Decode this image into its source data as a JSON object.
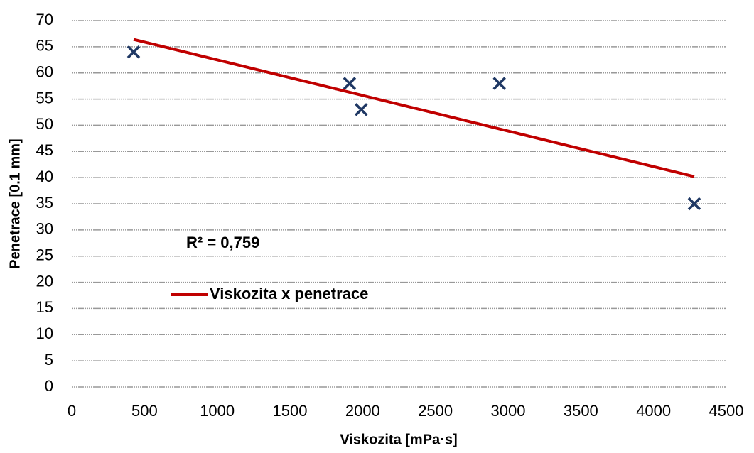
{
  "chart_data": {
    "type": "scatter",
    "x_label": "Viskozita [mPa·s]",
    "y_label": "Penetrace [0.1 mm]",
    "series": [
      {
        "color": "#1f3864",
        "x": [
          425,
          1910,
          1990,
          2940,
          4280
        ],
        "values": [
          64,
          58,
          53,
          58,
          35
        ]
      }
    ],
    "trendline": {
      "name": "Viskozita x penetrace",
      "color": "#c00000",
      "x": [
        425,
        4280
      ],
      "values": [
        66.4,
        40.2
      ]
    },
    "annotation": "R² = 0,759",
    "xlim": [
      0,
      4500
    ],
    "xticks": [
      0,
      500,
      1000,
      1500,
      2000,
      2500,
      3000,
      3500,
      4000,
      4500
    ],
    "ylim": [
      0,
      70
    ],
    "yticks": [
      0,
      5,
      10,
      15,
      20,
      25,
      30,
      35,
      40,
      45,
      50,
      55,
      60,
      65,
      70
    ],
    "grid": true
  }
}
